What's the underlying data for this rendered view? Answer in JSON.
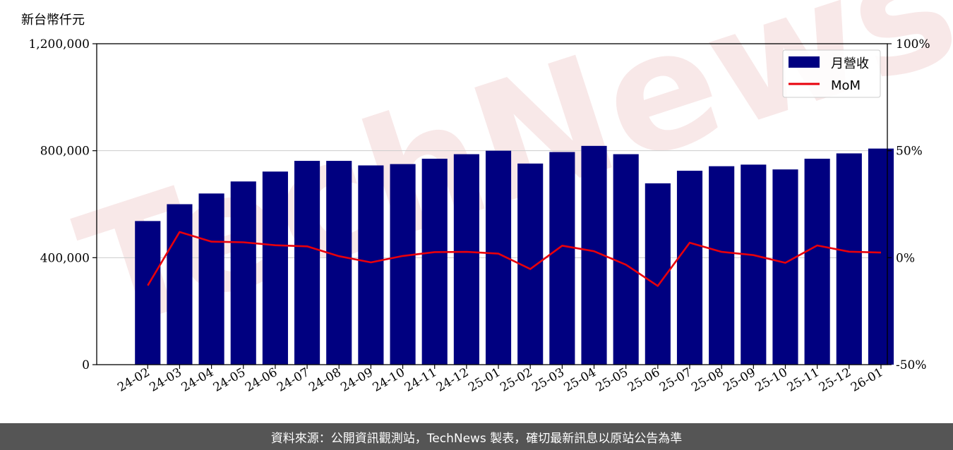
{
  "y_unit_label": "新台幣仟元",
  "watermark_text": "TechNews",
  "footer_text": "資料來源：公開資訊觀測站，TechNews 製表，確切最新訊息以原站公告為準",
  "chart_data": {
    "type": "bar",
    "title": "",
    "categories": [
      "24-02",
      "24-03",
      "24-04",
      "24-05",
      "24-06",
      "24-07",
      "24-08",
      "24-09",
      "24-10",
      "24-11",
      "24-12",
      "25-01",
      "25-02",
      "25-03",
      "25-04",
      "25-05",
      "25-06",
      "25-07",
      "25-08",
      "25-09",
      "25-10",
      "25-11",
      "25-12",
      "26-01"
    ],
    "series": [
      {
        "name": "月營收",
        "type": "bar",
        "axis": "left",
        "color": "#000080",
        "values": [
          537000,
          600000,
          640000,
          685000,
          722000,
          762000,
          762000,
          745000,
          750000,
          770000,
          787000,
          800000,
          752000,
          795000,
          818000,
          787000,
          678000,
          725000,
          742000,
          748000,
          730000,
          770000,
          790000,
          808000
        ]
      },
      {
        "name": "MoM",
        "type": "line",
        "axis": "right",
        "color": "#e8000b",
        "values": [
          -13.0,
          12.0,
          7.5,
          7.2,
          5.8,
          5.3,
          0.7,
          -2.2,
          0.8,
          2.6,
          2.7,
          1.9,
          -5.3,
          5.6,
          3.0,
          -3.3,
          -13.2,
          7.0,
          2.7,
          1.2,
          -2.4,
          5.7,
          2.8,
          2.4
        ]
      }
    ],
    "y_left": {
      "min": 0,
      "max": 1200000,
      "ticks": [
        0,
        400000,
        800000,
        1200000
      ],
      "tick_labels": [
        "0",
        "400,000",
        "800,000",
        "1,200,000"
      ]
    },
    "y_right": {
      "min": -50,
      "max": 100,
      "ticks": [
        -50,
        0,
        50,
        100
      ],
      "tick_labels": [
        "-50%",
        "0%",
        "50%",
        "100%"
      ]
    },
    "grid": "horizontal",
    "legend_position": "top-right"
  }
}
